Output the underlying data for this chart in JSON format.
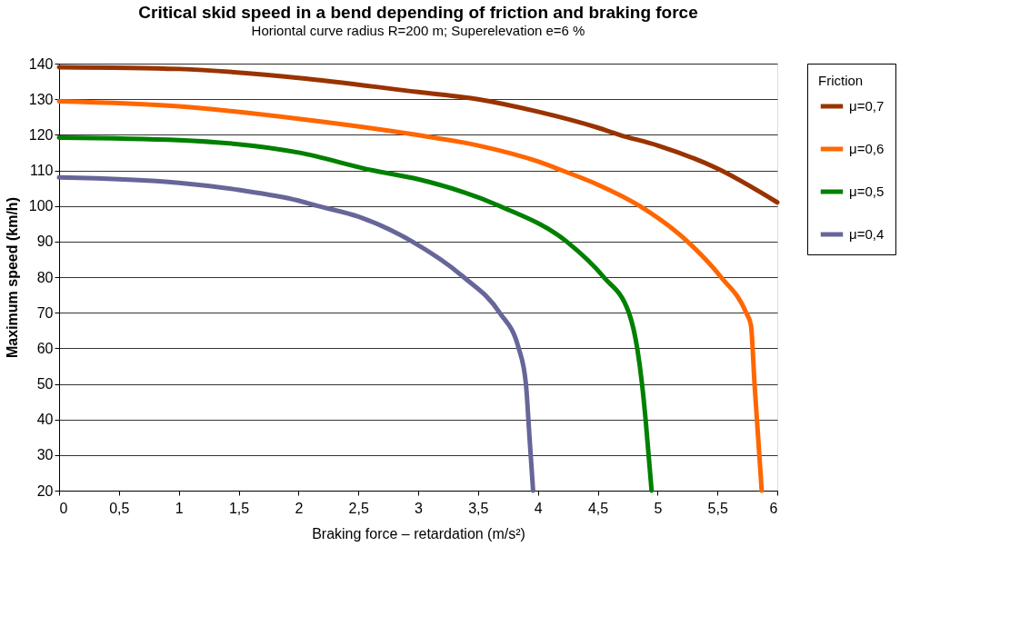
{
  "chart_data": {
    "type": "line",
    "title": "Critical skid speed in a bend depending of friction and braking force",
    "subtitle": "Horiontal curve radius R=200 m; Superelevation e=6 %",
    "xlabel": "Braking force – retardation (m/s²)",
    "ylabel": "Maximum speed (km/h)",
    "legend_title": "Friction",
    "legend": "right",
    "grid": "y",
    "line_style": "solid",
    "marker": "none",
    "xlim": [
      0,
      6
    ],
    "xticks": [
      0,
      {
        "value": 0.5,
        "label": "0,5"
      },
      1,
      {
        "value": 1.5,
        "label": "1,5"
      },
      2,
      {
        "value": 2.5,
        "label": "2,5"
      },
      3,
      {
        "value": 3.5,
        "label": "3,5"
      },
      4,
      {
        "value": 4.5,
        "label": "4,5"
      },
      5,
      {
        "value": 5.5,
        "label": "5,5"
      },
      6
    ],
    "ylim": [
      20,
      140
    ],
    "yticks": [
      20,
      30,
      40,
      50,
      60,
      70,
      80,
      90,
      100,
      110,
      120,
      130,
      140
    ],
    "series": [
      {
        "name": "μ=0,7",
        "color": "#993300",
        "x": [
          0,
          1,
          2,
          3,
          3.5,
          4,
          4.5,
          4.68,
          5,
          5.5,
          6
        ],
        "values": [
          139,
          138.5,
          136,
          132,
          130,
          126.5,
          122,
          120,
          117,
          110.5,
          101
        ]
      },
      {
        "name": "μ=0,6",
        "color": "#ff6600",
        "x": [
          0,
          1,
          2,
          2.98,
          3.5,
          4,
          4.2,
          4.5,
          4.85,
          5.25,
          5.53,
          5.74,
          5.78,
          5.81,
          5.84,
          5.87
        ],
        "values": [
          129.4,
          128,
          124.5,
          120,
          117,
          112.5,
          110,
          106,
          100,
          90,
          80,
          70,
          66.5,
          50,
          35,
          20
        ]
      },
      {
        "name": "μ=0,5",
        "color": "#008000",
        "x": [
          0,
          1,
          2,
          2.62,
          3,
          3.68,
          4.24,
          4.55,
          4.76,
          4.83,
          4.87,
          4.9,
          4.95
        ],
        "values": [
          119.2,
          118.5,
          115,
          110,
          107.5,
          100,
          90,
          80,
          70,
          60,
          50,
          40,
          20
        ]
      },
      {
        "name": "μ=0,4",
        "color": "#666699",
        "x": [
          0,
          1,
          1.5,
          2,
          2.16,
          2.5,
          2.95,
          3.38,
          3.68,
          3.84,
          3.9,
          3.93,
          3.96
        ],
        "values": [
          108,
          106.5,
          104.5,
          101.5,
          100,
          97,
          90,
          80,
          70,
          60,
          50,
          35,
          20
        ]
      }
    ]
  }
}
